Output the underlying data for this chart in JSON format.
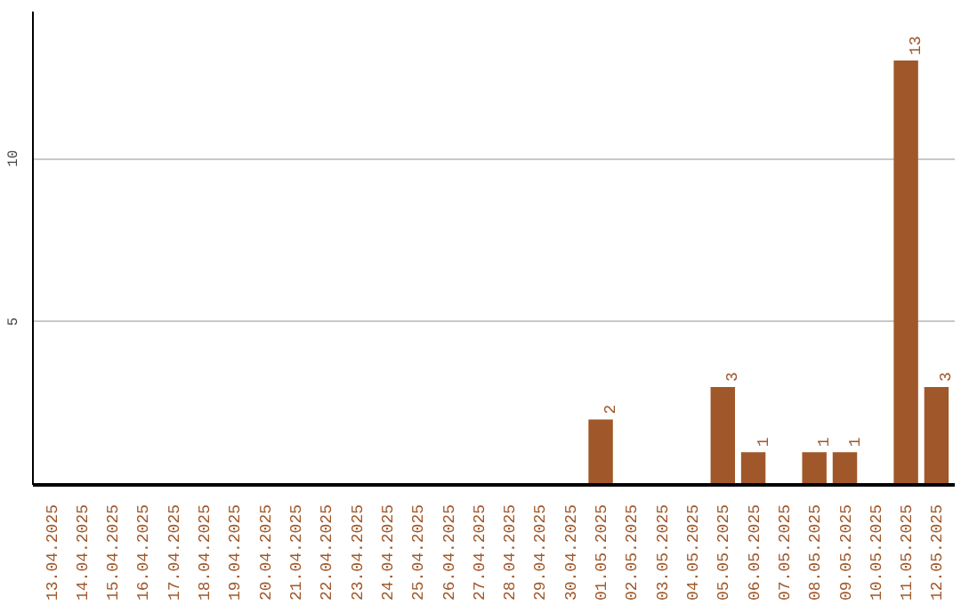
{
  "chart_data": {
    "type": "bar",
    "categories": [
      "13.04.2025",
      "14.04.2025",
      "15.04.2025",
      "16.04.2025",
      "17.04.2025",
      "18.04.2025",
      "19.04.2025",
      "20.04.2025",
      "21.04.2025",
      "22.04.2025",
      "23.04.2025",
      "24.04.2025",
      "25.04.2025",
      "26.04.2025",
      "27.04.2025",
      "28.04.2025",
      "29.04.2025",
      "30.04.2025",
      "01.05.2025",
      "02.05.2025",
      "03.05.2025",
      "04.05.2025",
      "05.05.2025",
      "06.05.2025",
      "07.05.2025",
      "08.05.2025",
      "09.05.2025",
      "10.05.2025",
      "11.05.2025",
      "12.05.2025"
    ],
    "values": [
      0,
      0,
      0,
      0,
      0,
      0,
      0,
      0,
      0,
      0,
      0,
      0,
      0,
      0,
      0,
      0,
      0,
      0,
      2,
      0,
      0,
      0,
      3,
      1,
      0,
      1,
      1,
      0,
      13,
      3
    ],
    "value_labels": [
      null,
      null,
      null,
      null,
      null,
      null,
      null,
      null,
      null,
      null,
      null,
      null,
      null,
      null,
      null,
      null,
      null,
      null,
      "2",
      null,
      null,
      null,
      "3",
      "1",
      null,
      "1",
      "1",
      null,
      "13",
      "3"
    ],
    "color": "#a0582a",
    "ylim": [
      0,
      14.5
    ],
    "yticks": [
      5,
      10
    ],
    "grid": "y"
  }
}
